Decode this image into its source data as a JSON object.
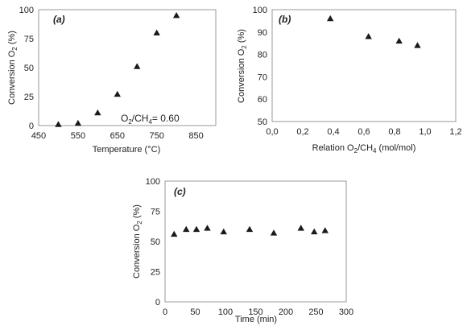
{
  "chart_data": [
    {
      "id": "a",
      "type": "scatter",
      "panel_label": "(a)",
      "xlabel": "Temperature  (°C)",
      "ylabel": "Conversion O2 (%)",
      "xlim": [
        450,
        900
      ],
      "ylim": [
        0,
        100
      ],
      "xticks": [
        "450",
        "550",
        "650",
        "750",
        "850"
      ],
      "yticks": [
        "0",
        "25",
        "50",
        "75",
        "100"
      ],
      "annotation": "O2/CH4= 0.60",
      "marker": "triangle",
      "color": "#1a1a1a",
      "x": [
        500,
        550,
        600,
        650,
        700,
        750,
        800
      ],
      "y": [
        1,
        2,
        11,
        27,
        51,
        80,
        95
      ]
    },
    {
      "id": "b",
      "type": "scatter",
      "panel_label": "(b)",
      "xlabel": "Relation O2/CH4 (mol/mol)",
      "ylabel": "Conversion O2 (%)",
      "xlim": [
        0,
        1.2
      ],
      "ylim": [
        50,
        100
      ],
      "xticks": [
        "0,0",
        "0,2",
        "0,4",
        "0,6",
        "0,8",
        "1,0",
        "1,2"
      ],
      "yticks": [
        "50",
        "60",
        "70",
        "80",
        "90",
        "100"
      ],
      "marker": "triangle",
      "color": "#1a1a1a",
      "x": [
        0.38,
        0.63,
        0.83,
        0.95
      ],
      "y": [
        96,
        88,
        86,
        84
      ]
    },
    {
      "id": "c",
      "type": "scatter",
      "panel_label": "(c)",
      "xlabel": "Time (min)",
      "ylabel": "Conversion O2 (%)",
      "xlim": [
        0,
        300
      ],
      "ylim": [
        0,
        100
      ],
      "xticks": [
        "0",
        "50",
        "100",
        "150",
        "200",
        "250",
        "300"
      ],
      "yticks": [
        "0",
        "25",
        "50",
        "75",
        "100"
      ],
      "marker": "triangle",
      "color": "#1a1a1a",
      "x": [
        15,
        35,
        52,
        70,
        97,
        140,
        180,
        225,
        247,
        265
      ],
      "y": [
        56,
        60,
        60,
        61,
        58,
        60,
        57,
        61,
        58,
        59
      ]
    }
  ]
}
